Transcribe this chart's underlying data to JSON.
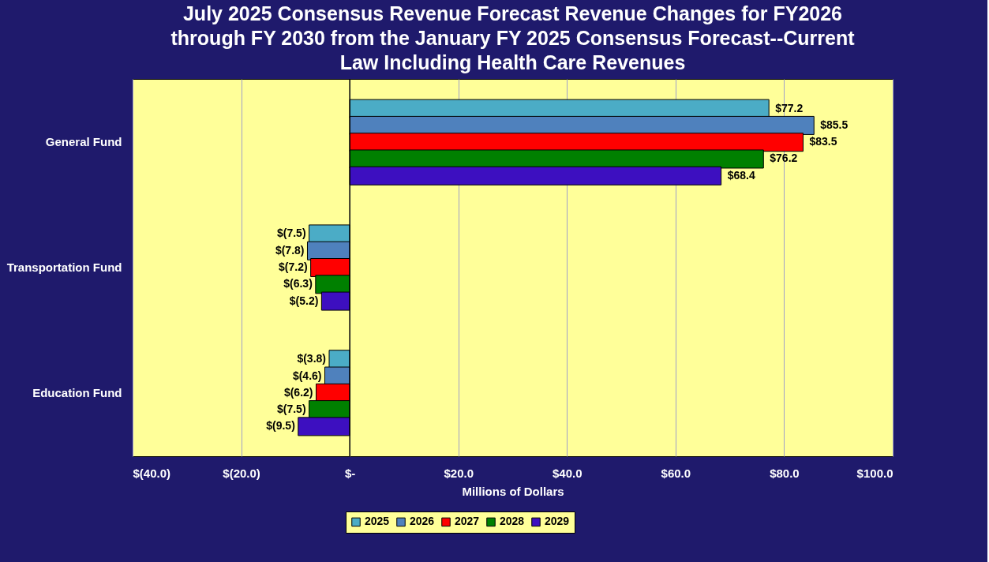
{
  "chart_data": {
    "type": "bar",
    "orientation": "horizontal",
    "title": "July 2025 Consensus Revenue Forecast Revenue Changes for FY2026 through FY 2030 from the January FY 2025 Consensus Forecast--Current Law Including Health Care Revenues",
    "xlabel": "Millions of Dollars",
    "categories": [
      "General Fund",
      "Transportation Fund",
      "Education Fund"
    ],
    "series": [
      {
        "name": "2025",
        "color": "#4bacc6",
        "values": [
          77.2,
          -7.5,
          -3.8
        ],
        "value_labels": [
          "$77.2",
          "$(7.5)",
          "$(3.8)"
        ]
      },
      {
        "name": "2026",
        "color": "#4f81bd",
        "values": [
          85.5,
          -7.8,
          -4.6
        ],
        "value_labels": [
          "$85.5",
          "$(7.8)",
          "$(4.6)"
        ]
      },
      {
        "name": "2027",
        "color": "#ff0000",
        "values": [
          83.5,
          -7.2,
          -6.2
        ],
        "value_labels": [
          "$83.5",
          "$(7.2)",
          "$(6.2)"
        ]
      },
      {
        "name": "2028",
        "color": "#008000",
        "values": [
          76.2,
          -6.3,
          -7.5
        ],
        "value_labels": [
          "$76.2",
          "$(6.3)",
          "$(7.5)"
        ]
      },
      {
        "name": "2029",
        "color": "#3d0fc0",
        "values": [
          68.4,
          -5.2,
          -9.5
        ],
        "value_labels": [
          "$68.4",
          "$(5.2)",
          "$(9.5)"
        ]
      }
    ],
    "xlim": [
      -40,
      100
    ],
    "xticks": [
      {
        "value": -40,
        "label": "$(40.0)"
      },
      {
        "value": -20,
        "label": "$(20.0)"
      },
      {
        "value": 0,
        "label": "$-"
      },
      {
        "value": 20,
        "label": "$20.0"
      },
      {
        "value": 40,
        "label": "$40.0"
      },
      {
        "value": 60,
        "label": "$60.0"
      },
      {
        "value": 80,
        "label": "$80.0"
      },
      {
        "value": 100,
        "label": "$100.0"
      }
    ],
    "grid": "x",
    "legend": "bottom"
  }
}
